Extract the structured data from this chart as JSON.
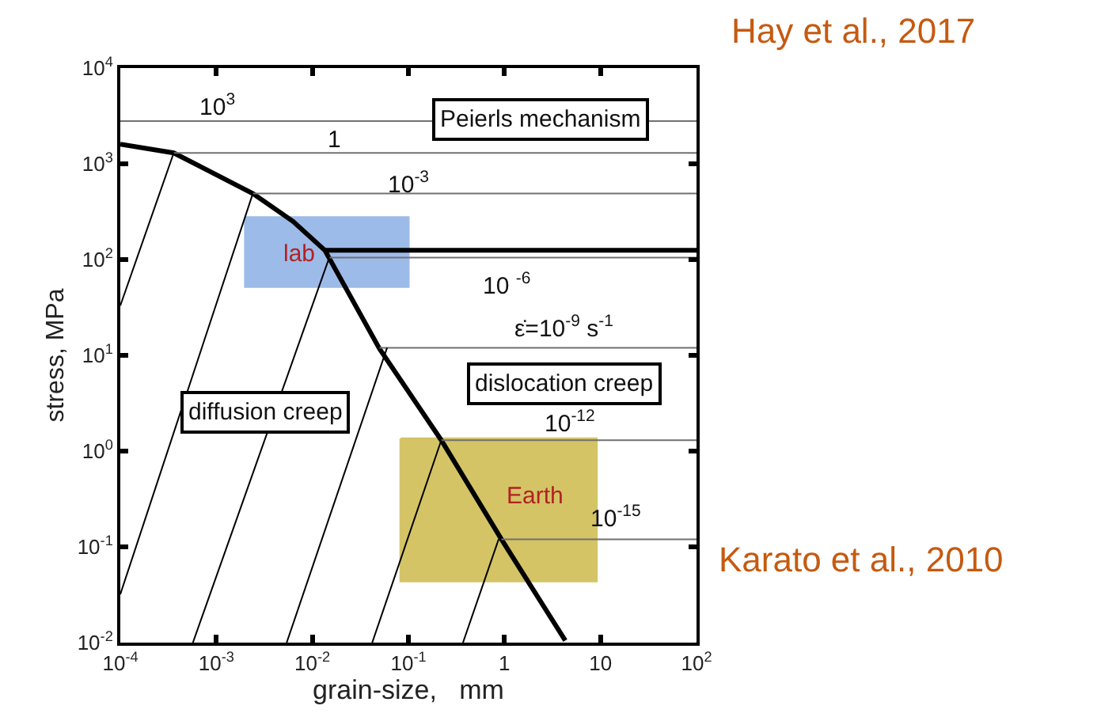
{
  "chart_data": {
    "type": "line",
    "xlabel": "grain-size,   mm",
    "ylabel": "stress, MPa",
    "log": "xy",
    "marker": "none",
    "line_style": "solid",
    "xlim": [
      0.0001,
      100
    ],
    "ylim": [
      0.01,
      10000
    ],
    "xticks": [
      {
        "value": 0.0001,
        "label": "10$^{-4}$"
      },
      {
        "value": 0.001,
        "label": "10$^{-3}$"
      },
      {
        "value": 0.01,
        "label": "10$^{-2}$"
      },
      {
        "value": 0.1,
        "label": "10$^{-1}$"
      },
      1,
      10,
      {
        "value": 100,
        "label": "10$^{2}$"
      }
    ],
    "yticks": [
      {
        "value": 0.01,
        "label": "10$^{-2}$"
      },
      {
        "value": 0.1,
        "label": "10$^{-1}$"
      },
      {
        "value": 1,
        "label": "10$^{0}$"
      },
      {
        "value": 10,
        "label": "10$^{1}$"
      },
      {
        "value": 100,
        "label": "10$^{2}$"
      },
      {
        "value": 1000,
        "label": "10$^{3}$"
      },
      {
        "value": 10000,
        "label": "10$^{4}$"
      }
    ],
    "series": [
      {
        "type": "area",
        "color": "#9dbbe8",
        "x": [
          0.002,
          0.1,
          0.1,
          0.002
        ],
        "values": [
          275,
          275,
          52,
          52
        ]
      },
      {
        "type": "area",
        "color": "#d4c466",
        "x": [
          0.083,
          9.1,
          9.1,
          0.083
        ],
        "values": [
          1.35,
          1.35,
          0.044,
          0.044
        ]
      },
      {
        "type": "line",
        "color": "#000000",
        "x": [
          0.0001,
          0.00036,
          0.0024,
          0.0063,
          0.0135,
          0.05,
          0.22,
          0.93,
          4.3
        ],
        "values": [
          1600,
          1300,
          490,
          250,
          125,
          11.7,
          1.3,
          0.12,
          0.0105
        ]
      },
      {
        "type": "line",
        "color": "#000000",
        "x": [
          0.0135,
          100
        ],
        "values": [
          125,
          125
        ]
      },
      {
        "type": "line",
        "color": "#707070",
        "x": [
          0.0001,
          100
        ],
        "values": [
          2800,
          2800
        ]
      },
      {
        "type": "line",
        "color": "#707070",
        "x": [
          0.00036,
          100
        ],
        "values": [
          1300,
          1300
        ]
      },
      {
        "type": "line",
        "color": "#707070",
        "x": [
          0.0024,
          100
        ],
        "values": [
          490,
          490
        ]
      },
      {
        "type": "line",
        "color": "#707070",
        "x": [
          0.015,
          100
        ],
        "values": [
          105,
          105
        ]
      },
      {
        "type": "line",
        "color": "#707070",
        "x": [
          0.05,
          100
        ],
        "values": [
          12,
          12
        ]
      },
      {
        "type": "line",
        "color": "#707070",
        "x": [
          0.22,
          100
        ],
        "values": [
          1.3,
          1.3
        ]
      },
      {
        "type": "line",
        "color": "#707070",
        "x": [
          0.93,
          100
        ],
        "values": [
          0.12,
          0.12
        ]
      },
      {
        "type": "line",
        "color": "#000000",
        "x": [
          0.0001,
          0.00036
        ],
        "values": [
          33,
          1300
        ]
      },
      {
        "type": "line",
        "color": "#000000",
        "x": [
          0.0001,
          0.0024
        ],
        "values": [
          0.032,
          490
        ]
      },
      {
        "type": "line",
        "color": "#000000",
        "x": [
          0.00057,
          0.015
        ],
        "values": [
          0.01,
          105
        ]
      },
      {
        "type": "line",
        "color": "#000000",
        "x": [
          0.0054,
          0.06
        ],
        "values": [
          0.01,
          12
        ]
      },
      {
        "type": "line",
        "color": "#000000",
        "x": [
          0.042,
          0.22
        ],
        "values": [
          0.01,
          1.3
        ]
      },
      {
        "type": "line",
        "color": "#000000",
        "x": [
          0.37,
          0.87
        ],
        "values": [
          0.01,
          0.12
        ]
      }
    ],
    "annotations": [
      "10$^{3}$",
      "Peierls mechanism",
      "1",
      "10$^{-3}$",
      "lab",
      "10 $^{-6}$",
      "ε̇=10$^{-9}$ s$^{-1}$",
      "dislocation creep",
      "diffusion creep",
      "10$^{-12}$",
      "Earth",
      "10$^{-15}$",
      "Hay et al., 2017",
      "Karato et al., 2010"
    ]
  }
}
